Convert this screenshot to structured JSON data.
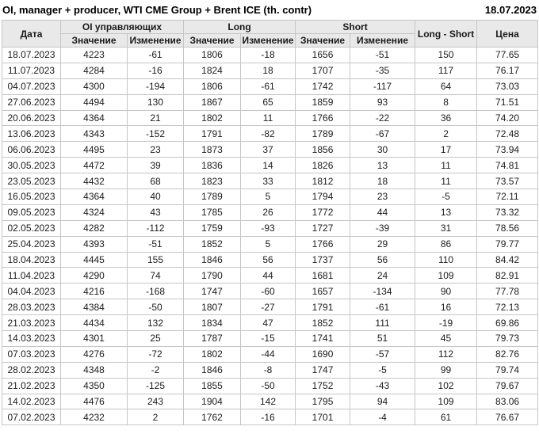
{
  "header": {
    "title": "OI, manager + producer, WTI CME Group + Brent ICE (th. contr)",
    "date": "18.07.2023"
  },
  "colors": {
    "positive": "#129a12",
    "negative": "#cc0000",
    "header_bg": "#e9e9e9",
    "grid": "#c6c6c6"
  },
  "table": {
    "group_headers": [
      "Дата",
      "OI управляющих",
      "Long",
      "Short",
      "Long - Short",
      "Цена"
    ],
    "sub_headers": [
      "Значение",
      "Изменение",
      "Значение",
      "Изменение",
      "Значение",
      "Изменение"
    ]
  },
  "chart_data": {
    "type": "table",
    "title": "OI, manager + producer, WTI CME Group + Brent ICE (th. contr)",
    "as_of_date": "18.07.2023",
    "column_groups": [
      "Дата",
      "OI управляющих (Значение, Изменение)",
      "Long (Значение, Изменение)",
      "Short (Значение, Изменение)",
      "Long - Short",
      "Цена"
    ],
    "columns": [
      "date",
      "oi_value",
      "oi_change",
      "long_value",
      "long_change",
      "short_value",
      "short_change",
      "long_short",
      "price"
    ],
    "rows": [
      [
        "18.07.2023",
        "4223",
        "-61",
        "1806",
        "-18",
        "1656",
        "-51",
        "150",
        "77.65"
      ],
      [
        "11.07.2023",
        "4284",
        "-16",
        "1824",
        "18",
        "1707",
        "-35",
        "117",
        "76.17"
      ],
      [
        "04.07.2023",
        "4300",
        "-194",
        "1806",
        "-61",
        "1742",
        "-117",
        "64",
        "73.03"
      ],
      [
        "27.06.2023",
        "4494",
        "130",
        "1867",
        "65",
        "1859",
        "93",
        "8",
        "71.51"
      ],
      [
        "20.06.2023",
        "4364",
        "21",
        "1802",
        "11",
        "1766",
        "-22",
        "36",
        "74.20"
      ],
      [
        "13.06.2023",
        "4343",
        "-152",
        "1791",
        "-82",
        "1789",
        "-67",
        "2",
        "72.48"
      ],
      [
        "06.06.2023",
        "4495",
        "23",
        "1873",
        "37",
        "1856",
        "30",
        "17",
        "73.94"
      ],
      [
        "30.05.2023",
        "4472",
        "39",
        "1836",
        "14",
        "1826",
        "13",
        "11",
        "74.81"
      ],
      [
        "23.05.2023",
        "4432",
        "68",
        "1823",
        "33",
        "1812",
        "18",
        "11",
        "73.57"
      ],
      [
        "16.05.2023",
        "4364",
        "40",
        "1789",
        "5",
        "1794",
        "23",
        "-5",
        "72.11"
      ],
      [
        "09.05.2023",
        "4324",
        "43",
        "1785",
        "26",
        "1772",
        "44",
        "13",
        "73.32"
      ],
      [
        "02.05.2023",
        "4282",
        "-112",
        "1759",
        "-93",
        "1727",
        "-39",
        "31",
        "78.56"
      ],
      [
        "25.04.2023",
        "4393",
        "-51",
        "1852",
        "5",
        "1766",
        "29",
        "86",
        "79.77"
      ],
      [
        "18.04.2023",
        "4445",
        "155",
        "1846",
        "56",
        "1737",
        "56",
        "110",
        "84.42"
      ],
      [
        "11.04.2023",
        "4290",
        "74",
        "1790",
        "44",
        "1681",
        "24",
        "109",
        "82.91"
      ],
      [
        "04.04.2023",
        "4216",
        "-168",
        "1747",
        "-60",
        "1657",
        "-134",
        "90",
        "77.78"
      ],
      [
        "28.03.2023",
        "4384",
        "-50",
        "1807",
        "-27",
        "1791",
        "-61",
        "16",
        "72.13"
      ],
      [
        "21.03.2023",
        "4434",
        "132",
        "1834",
        "47",
        "1852",
        "111",
        "-19",
        "69.86"
      ],
      [
        "14.03.2023",
        "4301",
        "25",
        "1787",
        "-15",
        "1741",
        "51",
        "45",
        "79.73"
      ],
      [
        "07.03.2023",
        "4276",
        "-72",
        "1802",
        "-44",
        "1690",
        "-57",
        "112",
        "82.76"
      ],
      [
        "28.02.2023",
        "4348",
        "-2",
        "1846",
        "-8",
        "1747",
        "-5",
        "99",
        "79.74"
      ],
      [
        "21.02.2023",
        "4350",
        "-125",
        "1855",
        "-50",
        "1752",
        "-43",
        "102",
        "79.67"
      ],
      [
        "14.02.2023",
        "4476",
        "243",
        "1904",
        "142",
        "1795",
        "94",
        "109",
        "83.06"
      ],
      [
        "07.02.2023",
        "4232",
        "2",
        "1762",
        "-16",
        "1701",
        "-4",
        "61",
        "76.67"
      ]
    ]
  }
}
